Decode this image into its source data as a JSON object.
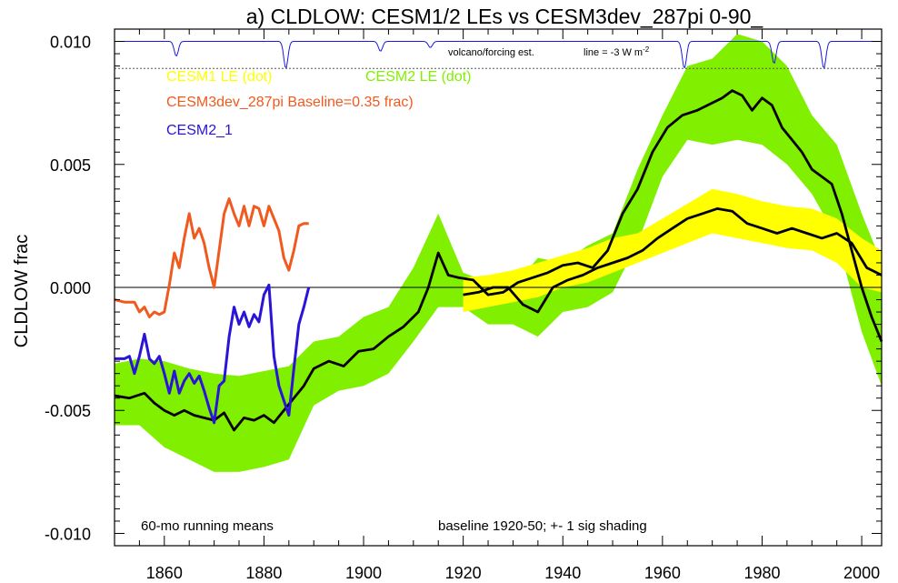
{
  "chart_data": {
    "type": "line",
    "title": "a) CLDLOW: CESM1/2 LEs vs CESM3dev_287pi 0-90_",
    "ylabel": "CLDLOW frac",
    "xlabel": "",
    "xlim": [
      1850,
      2004
    ],
    "ylim": [
      -0.0105,
      0.0105
    ],
    "x_ticks": [
      1860,
      1880,
      1900,
      1920,
      1940,
      1960,
      1980,
      2000
    ],
    "y_ticks": [
      -0.01,
      -0.005,
      0.0,
      0.005,
      0.01
    ],
    "y_tick_labels": [
      "-0.010",
      "-0.005",
      "0.000",
      "0.005",
      "0.010"
    ],
    "zero_line": true,
    "legend_placement": "top-left",
    "legend": {
      "cesm1": "CESM1 LE (dot)",
      "cesm2": "CESM2 LE (dot)",
      "cesm3": "CESM3dev_287pi Baseline=0.35 frac)",
      "cesm2_1": "CESM2_1"
    },
    "annotations": {
      "volcano_label": "volcano/forcing est.",
      "line_label": "line = -3 W m",
      "line_label_exp": "-2",
      "running_means": "60-mo running means",
      "baseline_note": "baseline 1920-50; +- 1 sig shading"
    },
    "colors": {
      "cesm1": "#ffff00",
      "cesm2": "#80f000",
      "cesm3": "#f05a1e",
      "cesm2_1": "#2a14d8",
      "mean_line": "#000000",
      "volcano": "#1a1ae0"
    },
    "volcano_ref_y": 0.0089,
    "volcano_events": [
      {
        "year": 1862,
        "depth": 0.0006
      },
      {
        "year": 1884,
        "depth": 0.0011
      },
      {
        "year": 1903,
        "depth": 0.0004
      },
      {
        "year": 1913,
        "depth": 0.00025
      },
      {
        "year": 1964,
        "depth": 0.0011
      },
      {
        "year": 1982,
        "depth": 0.0009
      },
      {
        "year": 1992,
        "depth": 0.0011
      }
    ],
    "series": [
      {
        "name": "CESM2 LE (dot)",
        "role": "band",
        "x": [
          1850,
          1855,
          1860,
          1865,
          1870,
          1875,
          1880,
          1885,
          1890,
          1895,
          1900,
          1905,
          1910,
          1915,
          1920,
          1925,
          1930,
          1935,
          1940,
          1945,
          1950,
          1955,
          1960,
          1965,
          1970,
          1975,
          1980,
          1985,
          1990,
          1995,
          2000,
          2004
        ],
        "upper": [
          -0.0031,
          -0.0029,
          -0.003,
          -0.0033,
          -0.0035,
          -0.0036,
          -0.0034,
          -0.0032,
          -0.0022,
          -0.002,
          -0.0012,
          -0.0008,
          0.0008,
          0.003,
          0.0006,
          0.0002,
          0.0,
          0.0012,
          0.001,
          0.0017,
          0.0022,
          0.0048,
          0.007,
          0.009,
          0.0093,
          0.0103,
          0.01,
          0.009,
          0.007,
          0.0058,
          0.003,
          0.001
        ],
        "lower": [
          -0.0056,
          -0.0056,
          -0.0065,
          -0.007,
          -0.0075,
          -0.0075,
          -0.0073,
          -0.007,
          -0.0048,
          -0.0042,
          -0.004,
          -0.0035,
          -0.0022,
          -0.0008,
          -0.0008,
          -0.0015,
          -0.0015,
          -0.002,
          -0.001,
          -0.0008,
          -0.0002,
          0.0018,
          0.0045,
          0.006,
          0.0058,
          0.006,
          0.0058,
          0.005,
          0.0038,
          0.002,
          -0.0018,
          -0.004
        ]
      },
      {
        "name": "CESM1 LE (dot)",
        "role": "band",
        "x": [
          1920,
          1925,
          1930,
          1935,
          1940,
          1945,
          1950,
          1955,
          1960,
          1965,
          1970,
          1975,
          1980,
          1985,
          1990,
          1995,
          2000,
          2004
        ],
        "upper": [
          0.0004,
          0.0005,
          0.0007,
          0.001,
          0.0013,
          0.0016,
          0.002,
          0.0022,
          0.0028,
          0.0034,
          0.004,
          0.0038,
          0.0035,
          0.0033,
          0.0032,
          0.0028,
          0.002,
          0.0015
        ],
        "lower": [
          -0.001,
          -0.0008,
          -0.0006,
          -0.0004,
          0.0,
          0.0002,
          0.0006,
          0.001,
          0.0014,
          0.0018,
          0.0022,
          0.002,
          0.0018,
          0.0016,
          0.0015,
          0.001,
          0.0,
          -0.0002
        ]
      },
      {
        "name": "",
        "role": "mean",
        "x": [
          1850,
          1853,
          1856,
          1858,
          1860,
          1862,
          1864,
          1866,
          1868,
          1870,
          1872,
          1874,
          1876,
          1878,
          1880,
          1882,
          1884,
          1886,
          1888,
          1890,
          1893,
          1896,
          1899,
          1902,
          1905,
          1908,
          1911,
          1913,
          1915,
          1917,
          1919,
          1922,
          1925,
          1928,
          1931,
          1934,
          1937,
          1940,
          1943,
          1946,
          1949,
          1952,
          1955,
          1958,
          1961,
          1964,
          1967,
          1970,
          1972,
          1974,
          1976,
          1978,
          1980,
          1982,
          1984,
          1986,
          1988,
          1990,
          1992,
          1994,
          1996,
          1998,
          2000,
          2002,
          2004
        ],
        "values": [
          -0.0044,
          -0.0045,
          -0.0043,
          -0.0047,
          -0.005,
          -0.0052,
          -0.005,
          -0.0052,
          -0.0053,
          -0.0054,
          -0.0051,
          -0.0058,
          -0.0053,
          -0.0054,
          -0.0052,
          -0.0055,
          -0.005,
          -0.0045,
          -0.004,
          -0.0033,
          -0.003,
          -0.0032,
          -0.0026,
          -0.0025,
          -0.002,
          -0.0016,
          -0.001,
          0.0,
          0.0014,
          0.0005,
          0.0004,
          0.0003,
          -0.0003,
          -0.0002,
          0.0002,
          0.0004,
          0.0006,
          0.0009,
          0.001,
          0.0008,
          0.0015,
          0.003,
          0.004,
          0.0055,
          0.0065,
          0.007,
          0.0072,
          0.0075,
          0.0077,
          0.008,
          0.0078,
          0.0072,
          0.0077,
          0.0074,
          0.0065,
          0.006,
          0.0055,
          0.0048,
          0.0045,
          0.0042,
          0.003,
          0.0015,
          0.0,
          -0.0012,
          -0.0022
        ]
      },
      {
        "name": "",
        "role": "mean",
        "x": [
          1920,
          1923,
          1926,
          1929,
          1932,
          1935,
          1938,
          1941,
          1944,
          1947,
          1950,
          1953,
          1956,
          1959,
          1962,
          1965,
          1968,
          1971,
          1974,
          1977,
          1980,
          1983,
          1986,
          1989,
          1992,
          1995,
          1998,
          2001,
          2004
        ],
        "values": [
          -0.0003,
          -0.0002,
          0.0,
          0.0,
          -0.0007,
          -0.001,
          0.0,
          0.0003,
          0.0005,
          0.0008,
          0.001,
          0.0012,
          0.0015,
          0.002,
          0.0024,
          0.0028,
          0.003,
          0.0032,
          0.0031,
          0.0026,
          0.0024,
          0.0022,
          0.0024,
          0.0022,
          0.002,
          0.0022,
          0.0018,
          0.0008,
          0.0005
        ]
      },
      {
        "name": "CESM3dev_287pi Baseline=0.35 frac)",
        "role": "line",
        "x": [
          1850,
          1852,
          1854,
          1855,
          1856,
          1857,
          1858,
          1859,
          1860,
          1861,
          1862,
          1863,
          1864,
          1865,
          1866,
          1867,
          1868,
          1869,
          1870,
          1871,
          1872,
          1873,
          1874,
          1875,
          1876,
          1877,
          1878,
          1879,
          1880,
          1881,
          1882,
          1883,
          1884,
          1885,
          1886,
          1887,
          1888,
          1889
        ],
        "values": [
          -0.0005,
          -0.0006,
          -0.0006,
          -0.001,
          -0.0008,
          -0.0012,
          -0.001,
          -0.0011,
          -0.001,
          0.0001,
          0.0014,
          0.0008,
          0.002,
          0.003,
          0.002,
          0.0024,
          0.0018,
          0.0008,
          0.0,
          0.0015,
          0.003,
          0.0036,
          0.003,
          0.0025,
          0.0033,
          0.0025,
          0.0033,
          0.0032,
          0.0025,
          0.0033,
          0.0028,
          0.0023,
          0.0012,
          0.0007,
          0.0015,
          0.0025,
          0.0026,
          0.0026
        ]
      },
      {
        "name": "CESM2_1",
        "role": "line",
        "x": [
          1850,
          1852,
          1853,
          1854,
          1855,
          1856,
          1857,
          1858,
          1859,
          1860,
          1861,
          1862,
          1863,
          1864,
          1865,
          1866,
          1867,
          1868,
          1869,
          1870,
          1871,
          1872,
          1873,
          1874,
          1875,
          1876,
          1877,
          1878,
          1879,
          1880,
          1881,
          1882,
          1883,
          1884,
          1885,
          1886,
          1887,
          1888,
          1889
        ],
        "values": [
          -0.0029,
          -0.0029,
          -0.0028,
          -0.0035,
          -0.0028,
          -0.0019,
          -0.0029,
          -0.0031,
          -0.0028,
          -0.0035,
          -0.0043,
          -0.0034,
          -0.0043,
          -0.0038,
          -0.0035,
          -0.0039,
          -0.0036,
          -0.0042,
          -0.0049,
          -0.0055,
          -0.004,
          -0.0038,
          -0.002,
          -0.0008,
          -0.0015,
          -0.001,
          -0.0016,
          -0.0011,
          -0.0014,
          -0.0003,
          0.0001,
          -0.0028,
          -0.004,
          -0.0046,
          -0.0052,
          -0.0033,
          -0.0015,
          -0.0008,
          0.0
        ]
      }
    ]
  }
}
